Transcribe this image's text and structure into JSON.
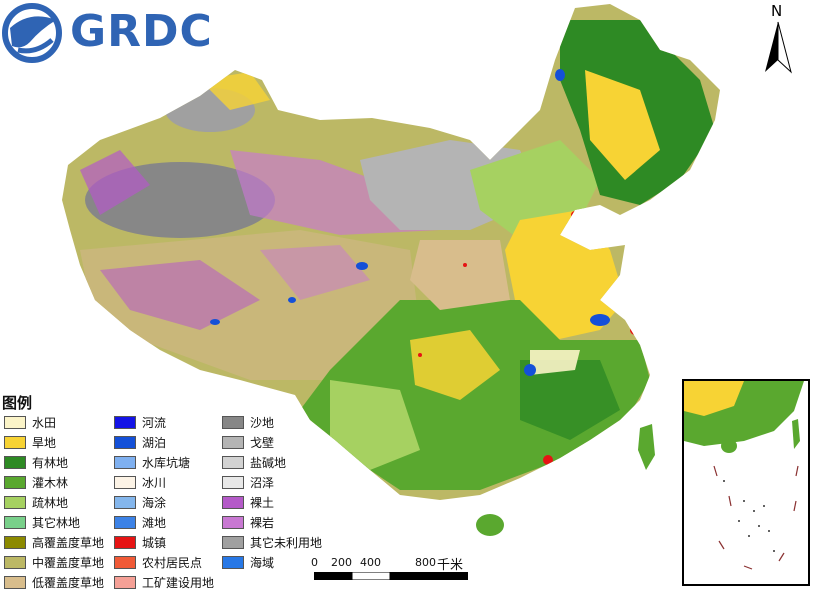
{
  "logo": {
    "text": "GRDC",
    "color": "#2f64b4"
  },
  "north_arrow": {
    "label": "N"
  },
  "legend": {
    "title": "图例",
    "columns": [
      [
        {
          "label": "水田",
          "color": "#fbf4c8"
        },
        {
          "label": "旱地",
          "color": "#f7d334"
        },
        {
          "label": "有林地",
          "color": "#2e8a24"
        },
        {
          "label": "灌木林",
          "color": "#5aa82f"
        },
        {
          "label": "疏林地",
          "color": "#a6d161"
        },
        {
          "label": "其它林地",
          "color": "#79d08a"
        },
        {
          "label": "高覆盖度草地",
          "color": "#8c8a00"
        },
        {
          "label": "中覆盖度草地",
          "color": "#bcb865"
        },
        {
          "label": "低覆盖度草地",
          "color": "#d8bd8c"
        }
      ],
      [
        {
          "label": "河流",
          "color": "#1414e6"
        },
        {
          "label": "湖泊",
          "color": "#1450d8"
        },
        {
          "label": "水库坑塘",
          "color": "#7fb0f0"
        },
        {
          "label": "冰川",
          "color": "#fcf3e6"
        },
        {
          "label": "海涂",
          "color": "#84b6ec"
        },
        {
          "label": "滩地",
          "color": "#3c82e6"
        },
        {
          "label": "城镇",
          "color": "#e61414"
        },
        {
          "label": "农村居民点",
          "color": "#f05a37"
        },
        {
          "label": "工矿建设用地",
          "color": "#f5a096"
        }
      ],
      [
        {
          "label": "沙地",
          "color": "#878787"
        },
        {
          "label": "戈壁",
          "color": "#b4b4b4"
        },
        {
          "label": "盐碱地",
          "color": "#d2d2d2"
        },
        {
          "label": "沼泽",
          "color": "#e8e8e8"
        },
        {
          "label": "裸土",
          "color": "#b45ac8"
        },
        {
          "label": "裸岩",
          "color": "#c878d2"
        },
        {
          "label": "其它未利用地",
          "color": "#a0a0a0"
        },
        {
          "label": "海域",
          "color": "#2878e6"
        }
      ]
    ]
  },
  "scale_bar": {
    "ticks": [
      "0",
      "200",
      "400",
      "800"
    ],
    "unit": "千米"
  }
}
